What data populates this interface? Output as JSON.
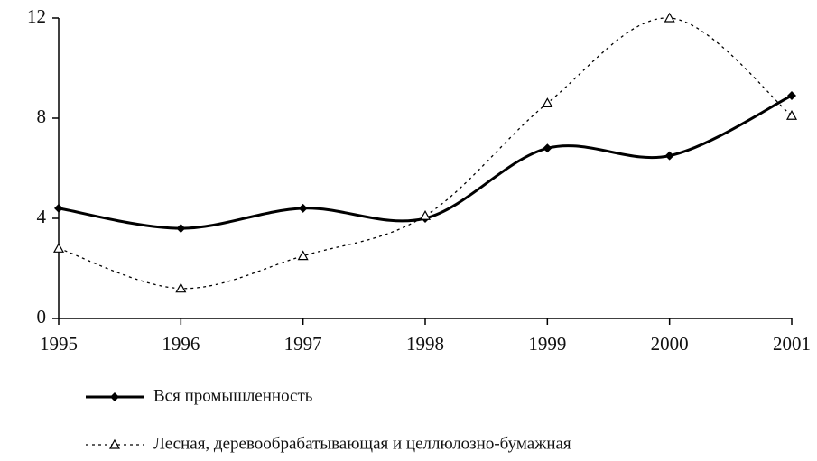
{
  "chart_data": {
    "type": "line",
    "x": [
      1995,
      1996,
      1997,
      1998,
      1999,
      2000,
      2001
    ],
    "xlim": [
      1995,
      2001
    ],
    "xticks": [
      1995,
      1996,
      1997,
      1998,
      1999,
      2000,
      2001
    ],
    "ylim": [
      0,
      12
    ],
    "yticks": [
      0,
      4,
      8,
      12
    ],
    "grid": false,
    "series": [
      {
        "name": "Вся промышленность",
        "color": "#000000",
        "marker": "diamond",
        "dash": "solid",
        "values": [
          4.4,
          3.6,
          4.4,
          4.0,
          6.8,
          6.5,
          8.9
        ]
      },
      {
        "name": "Лесная, деревообрабатывающая и целлюлозно-бумажная",
        "color": "#000000",
        "marker": "triangle",
        "dash": "dotted",
        "values": [
          2.8,
          1.2,
          2.5,
          4.1,
          8.6,
          12.0,
          8.1
        ]
      }
    ]
  }
}
